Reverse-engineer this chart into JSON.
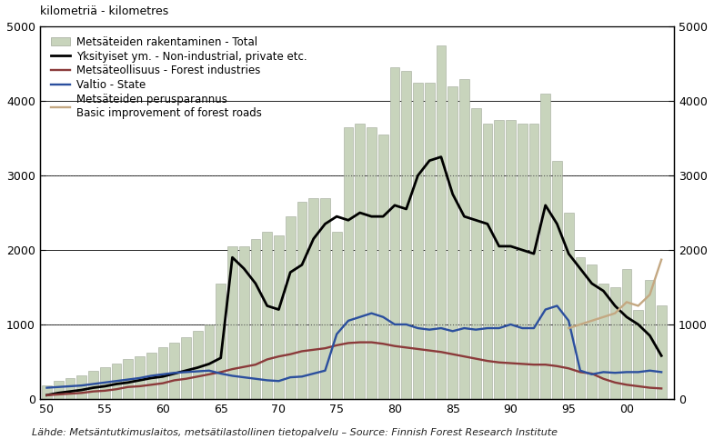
{
  "years": [
    50,
    51,
    52,
    53,
    54,
    55,
    56,
    57,
    58,
    59,
    60,
    61,
    62,
    63,
    64,
    65,
    66,
    67,
    68,
    69,
    70,
    71,
    72,
    73,
    74,
    75,
    76,
    77,
    78,
    79,
    80,
    81,
    82,
    83,
    84,
    85,
    86,
    87,
    88,
    89,
    90,
    91,
    92,
    93,
    94,
    95,
    96,
    97,
    98,
    99,
    100,
    101,
    102,
    103
  ],
  "bar_total": [
    180,
    240,
    280,
    320,
    380,
    430,
    470,
    530,
    570,
    620,
    700,
    760,
    830,
    920,
    1000,
    1550,
    2050,
    2050,
    2150,
    2250,
    2200,
    2450,
    2650,
    2700,
    2700,
    2250,
    3650,
    3700,
    3650,
    3550,
    4450,
    4400,
    4250,
    4250,
    4750,
    4200,
    4300,
    3900,
    3700,
    3750,
    3750,
    3700,
    3700,
    4100,
    3200,
    2500,
    1900,
    1800,
    1550,
    1500,
    1750,
    1200,
    1600,
    1250
  ],
  "line_total": [
    50,
    80,
    100,
    120,
    150,
    170,
    200,
    220,
    250,
    280,
    300,
    340,
    380,
    420,
    470,
    550,
    1900,
    1750,
    1550,
    1250,
    1200,
    1700,
    1800,
    2150,
    2350,
    2450,
    2400,
    2500,
    2450,
    2450,
    2600,
    2550,
    3000,
    3200,
    3250,
    2750,
    2450,
    2400,
    2350,
    2050,
    2050,
    2000,
    1950,
    2600,
    2350,
    1950,
    1750,
    1550,
    1450,
    1250,
    1100,
    1000,
    850,
    580
  ],
  "line_forest_ind": [
    50,
    60,
    70,
    80,
    100,
    110,
    130,
    160,
    170,
    190,
    210,
    250,
    270,
    300,
    330,
    360,
    400,
    430,
    460,
    530,
    570,
    600,
    640,
    660,
    680,
    720,
    750,
    760,
    760,
    740,
    710,
    690,
    670,
    650,
    630,
    600,
    570,
    540,
    510,
    490,
    480,
    470,
    460,
    460,
    440,
    410,
    360,
    340,
    270,
    220,
    190,
    170,
    150,
    140
  ],
  "line_state": [
    150,
    160,
    170,
    180,
    200,
    220,
    240,
    260,
    280,
    310,
    330,
    350,
    360,
    370,
    380,
    340,
    310,
    290,
    270,
    250,
    240,
    290,
    300,
    340,
    380,
    870,
    1050,
    1100,
    1150,
    1100,
    1000,
    1000,
    950,
    930,
    950,
    910,
    950,
    930,
    950,
    950,
    1000,
    950,
    950,
    1200,
    1250,
    1050,
    380,
    330,
    360,
    350,
    360,
    360,
    380,
    360
  ],
  "line_basic_improvement": [
    null,
    null,
    null,
    null,
    null,
    null,
    null,
    null,
    null,
    null,
    null,
    null,
    null,
    null,
    null,
    null,
    null,
    null,
    null,
    null,
    null,
    null,
    null,
    null,
    null,
    null,
    null,
    null,
    null,
    null,
    null,
    null,
    null,
    null,
    null,
    null,
    null,
    null,
    null,
    null,
    null,
    null,
    null,
    null,
    null,
    950,
    1000,
    1050,
    1100,
    1150,
    1300,
    1250,
    1400,
    1870
  ],
  "bar_color": "#c8d4bc",
  "bar_edge_color": "#a0a898",
  "line_total_color": "#000000",
  "line_forest_ind_color": "#8b3a3a",
  "line_state_color": "#2b4f9e",
  "line_basic_improvement_color": "#c4a882",
  "background_color": "#ffffff",
  "grid_color": "#000000",
  "ylim": [
    0,
    5000
  ],
  "yticks": [
    0,
    1000,
    2000,
    3000,
    4000,
    5000
  ],
  "xtick_positions": [
    50,
    55,
    60,
    65,
    70,
    75,
    80,
    85,
    90,
    95,
    100
  ],
  "xtick_labels": [
    "50",
    "55",
    "60",
    "65",
    "70",
    "75",
    "80",
    "85",
    "90",
    "95",
    "00"
  ],
  "ylabel_left": "kilometriä - kilometres",
  "source_text": "Lähde: Metsäntutkimuslaitos, metsätilastollinen tietopalvelu – Source: Finnish Forest Research Institute",
  "legend_label_bar": "Metsäteiden rakentaminen - ",
  "legend_label_bar_italic": "Total",
  "legend_label_total": "Yksityiset ym. - ",
  "legend_label_total_italic": "Non-industrial, private etc.",
  "legend_label_fi": "Metsäteollisuus - ",
  "legend_label_fi_italic": "Forest industries",
  "legend_label_state": "Valtio - ",
  "legend_label_state_italic": "State",
  "legend_label_basic": "Metsäteiden perusparannus",
  "legend_label_basic_italic": "Basic improvement of forest roads",
  "axis_fontsize": 9,
  "legend_fontsize": 8.5,
  "source_fontsize": 8
}
